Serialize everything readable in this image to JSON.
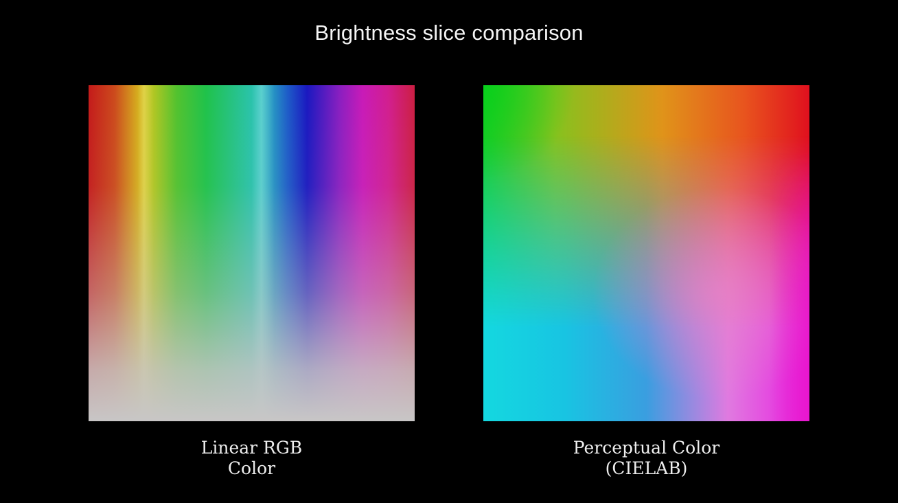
{
  "title": "Brightness slice comparison",
  "panels": [
    {
      "caption_line1": "Linear RGB",
      "caption_line2": "Color"
    },
    {
      "caption_line1": "Perceptual Color",
      "caption_line2": "(CIELAB)"
    }
  ],
  "colors": {
    "background": "#000000",
    "text": "#f2f2f2"
  }
}
